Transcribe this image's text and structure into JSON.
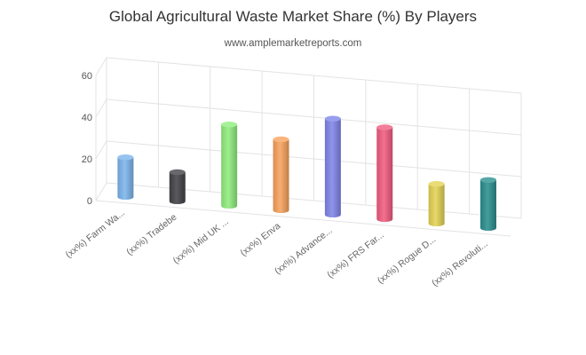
{
  "chart_data": {
    "type": "bar",
    "title": "Global Agricultural Waste Market Share (%) By Players",
    "subtitle": "www.amplemarketreports.com",
    "categories": [
      "(xx%) Farm Wa...",
      "(xx%) Tradebe",
      "(xx%) Mid UK ...",
      "(xx%) Enva",
      "(xx%) Advance...",
      "(xx%) FRS Far...",
      "(xx%) Rogue D...",
      "(xx%) Revoluti..."
    ],
    "values": [
      19,
      14,
      39,
      34,
      46,
      44,
      19,
      23
    ],
    "colors": [
      "#7cb5ec",
      "#434348",
      "#90ed7d",
      "#f7a35c",
      "#8085e9",
      "#f15c80",
      "#e4d354",
      "#2b908f"
    ],
    "ylim": [
      0,
      60
    ],
    "yticks": [
      0,
      20,
      40,
      60
    ],
    "grid": true,
    "legend": "none",
    "style": "3d-cylinder"
  }
}
